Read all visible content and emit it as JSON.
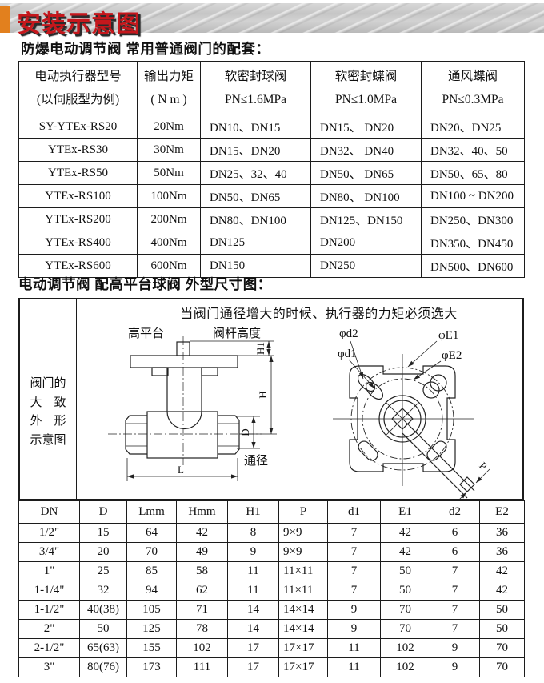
{
  "banner": {
    "title": "安装示意图"
  },
  "sections": {
    "matching_title": "防爆电动调节阀  常用普通阀门的配套：",
    "dimension_title": "电动调节阀  配高平台球阀  外型尺寸图："
  },
  "matching_table": {
    "headers": [
      {
        "line1": "电动执行器型号",
        "line2": "(以伺服型为例)"
      },
      {
        "line1": "输出力矩",
        "line2": "( N m )"
      },
      {
        "line1": "软密封球阀",
        "line2": "PN≤1.6MPa"
      },
      {
        "line1": "软密封蝶阀",
        "line2": "PN≤1.0MPa"
      },
      {
        "line1": "通风蝶阀",
        "line2": "PN≤0.3MPa"
      }
    ],
    "rows": [
      [
        "SY-YTEx-RS20",
        "20Nm",
        "DN10、DN15",
        "DN15、 DN20",
        "DN20、DN25"
      ],
      [
        "YTEx-RS30",
        "30Nm",
        "DN15、DN20",
        "DN32、 DN40",
        "DN32、40、50"
      ],
      [
        "YTEx-RS50",
        "50Nm",
        "DN25、32、40",
        "DN50、 DN65",
        "DN50、65、80"
      ],
      [
        "YTEx-RS100",
        "100Nm",
        "DN50、DN65",
        "DN80、 DN100",
        "DN100 ~ DN200"
      ],
      [
        "YTEx-RS200",
        "200Nm",
        "DN80、DN100",
        "DN125、DN150",
        "DN250、DN300"
      ],
      [
        "YTEx-RS400",
        "400Nm",
        "DN125",
        "DN200",
        "DN350、DN450"
      ],
      [
        "YTEx-RS600",
        "600Nm",
        "DN150",
        "DN250",
        "DN500、DN600"
      ]
    ]
  },
  "diagram": {
    "note": "当阀门通径增大的时候、执行器的力矩必须选大",
    "side_label": [
      "阀门的",
      "大　致",
      "外　形",
      "示意图"
    ],
    "labels": {
      "high_platform": "高平台",
      "stem_height": "阀杆高度",
      "bore": "通径",
      "h1": "H1",
      "h": "H",
      "d": "D",
      "l": "L",
      "p": "P",
      "phi_d2": "φd2",
      "phi_d1": "φd1",
      "phi_e1": "φE1",
      "phi_e2": "φE2"
    }
  },
  "dimension_table": {
    "headers": [
      "DN",
      "D",
      "Lmm",
      "Hmm",
      "H1",
      "P",
      "d1",
      "E1",
      "d2",
      "E2"
    ],
    "rows": [
      [
        "1/2\"",
        "15",
        "64",
        "42",
        "8",
        "9×9",
        "7",
        "42",
        "6",
        "36"
      ],
      [
        "3/4\"",
        "20",
        "70",
        "49",
        "9",
        "9×9",
        "7",
        "42",
        "6",
        "36"
      ],
      [
        "1\"",
        "25",
        "85",
        "58",
        "11",
        "11×11",
        "7",
        "50",
        "7",
        "42"
      ],
      [
        "1-1/4\"",
        "32",
        "94",
        "62",
        "11",
        "11×11",
        "7",
        "50",
        "7",
        "42"
      ],
      [
        "1-1/2\"",
        "40(38)",
        "105",
        "71",
        "14",
        "14×14",
        "9",
        "70",
        "7",
        "50"
      ],
      [
        "2\"",
        "50",
        "125",
        "78",
        "14",
        "14×14",
        "9",
        "70",
        "7",
        "50"
      ],
      [
        "2-1/2\"",
        "65(63)",
        "155",
        "102",
        "17",
        "17×17",
        "11",
        "102",
        "9",
        "70"
      ],
      [
        "3\"",
        "80(76)",
        "173",
        "111",
        "17",
        "17×17",
        "11",
        "102",
        "9",
        "70"
      ]
    ]
  }
}
